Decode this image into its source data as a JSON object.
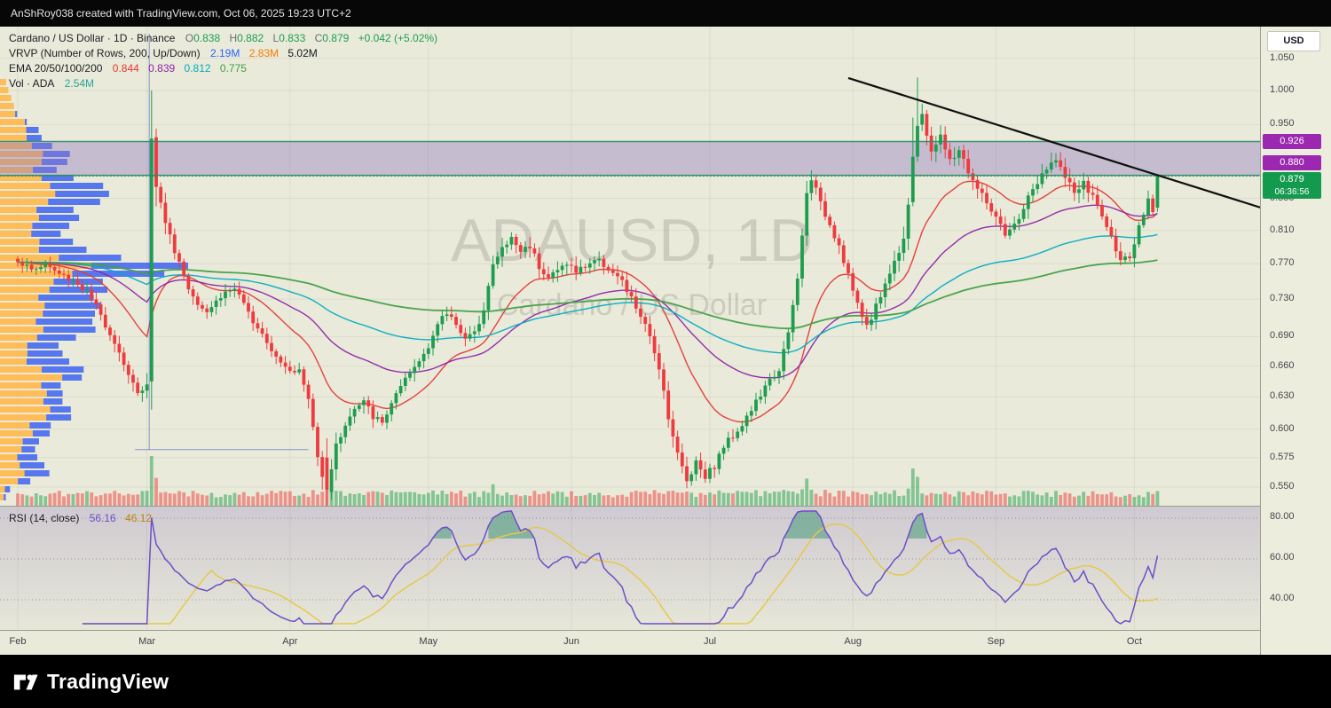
{
  "topbar": {
    "text": "AnShRoy038 created with TradingView.com, Oct 06, 2025 19:23 UTC+2"
  },
  "legend": {
    "symbol": {
      "title": "Cardano / US Dollar · 1D · Binance",
      "o_label": "O",
      "o": "0.838",
      "h_label": "H",
      "h": "0.882",
      "l_label": "L",
      "l": "0.833",
      "c_label": "C",
      "c": "0.879",
      "change": "+0.042 (+5.02%)"
    },
    "vrvp": {
      "title": "VRVP (Number of Rows, 200, Up/Down)",
      "up": "2.19M",
      "down": "2.83M",
      "total": "5.02M"
    },
    "ema": {
      "title": "EMA 20/50/100/200",
      "v1": "0.844",
      "v2": "0.839",
      "v3": "0.812",
      "v4": "0.775"
    },
    "vol": {
      "title": "Vol · ADA",
      "value": "2.54M"
    }
  },
  "rsi_legend": {
    "title": "RSI (14, close)",
    "value": "56.16",
    "ma": "46.12"
  },
  "watermark": {
    "line1": "ADAUSD, 1D",
    "line2": "Cardano / US Dollar"
  },
  "axis": {
    "currency": "USD",
    "price_ticks": [
      1.05,
      1.0,
      0.95,
      0.85,
      0.81,
      0.77,
      0.73,
      0.69,
      0.66,
      0.63,
      0.6,
      0.575,
      0.55
    ],
    "badges": [
      {
        "label": "0.926",
        "price": 0.926
      },
      {
        "label": "0.880",
        "price": 0.88
      }
    ],
    "last_price_badge": {
      "label": "0.879",
      "countdown": "06:36:56",
      "price": 0.879
    },
    "rsi_ticks": [
      {
        "v": 80,
        "label": "80.00"
      },
      {
        "v": 60,
        "label": "60.00"
      },
      {
        "v": 40,
        "label": "40.00"
      }
    ],
    "months": [
      "Feb",
      "Mar",
      "Apr",
      "May",
      "Jun",
      "Jul",
      "Aug",
      "Sep",
      "Oct"
    ]
  },
  "logo": {
    "text": "TradingView"
  },
  "colors": {
    "bg": "#e9ead9",
    "axis_bg": "#eceddc",
    "up": "#1f9d4f",
    "down": "#ef3a3e",
    "vrvp_up": "#ffb84d",
    "vrvp_down": "#4a6cf0",
    "ema": [
      "#e53935",
      "#8e24aa",
      "#00acc1",
      "#43a047"
    ],
    "band_fill": "rgba(146,120,196,0.40)",
    "band_edge": "#2e8b6a",
    "trendline": "#101010",
    "rsi": "#6b4fc8",
    "rsi_ma": "#e6c84d",
    "badge_purple": "#9c27b0",
    "badge_green": "#149a4e",
    "accent_blue": "#2962ff",
    "accent_orange": "#f57c00",
    "text_dark": "#131722",
    "teal": "#26a69a",
    "rsi_ma_legend": "#b8860b",
    "watermark": "rgba(60,60,60,0.17)",
    "grid": "rgba(0,0,0,0.055)"
  },
  "chart_data": {
    "type": "candlestick",
    "symbol": "ADAUSD",
    "name": "Cardano / US Dollar",
    "interval": "1D",
    "exchange": "Binance",
    "price_scale": "log",
    "y_range": [
      0.52,
      1.07
    ],
    "months": [
      "Feb",
      "Mar",
      "Apr",
      "May",
      "Jun",
      "Jul",
      "Aug",
      "Sep",
      "Oct"
    ],
    "month_days": [
      0,
      28,
      59,
      89,
      120,
      150,
      181,
      212,
      242
    ],
    "days_total": 248,
    "last_candle": {
      "o": 0.838,
      "h": 0.882,
      "l": 0.833,
      "c": 0.879
    },
    "change": {
      "abs": 0.042,
      "pct": 5.02
    },
    "ema_periods": [
      20,
      50,
      100,
      200
    ],
    "ema_values": [
      0.844,
      0.839,
      0.812,
      0.775
    ],
    "vrvp": {
      "rows": 200,
      "mode": "Up/Down",
      "up_vol": "2.19M",
      "down_vol": "2.83M",
      "total_vol": "5.02M"
    },
    "volume_display": "2.54M",
    "rsi": {
      "period": 14,
      "current": 56.16,
      "ma": 46.12,
      "levels": [
        40,
        60,
        80
      ]
    },
    "band": {
      "top": 0.926,
      "bottom": 0.88
    },
    "trendline": {
      "d1": 180,
      "p1": 1.019,
      "d2": 270,
      "p2": 0.837
    },
    "drawings": {
      "vline_day": 28.5,
      "vline_price_end": 0.582,
      "hline_price": 0.582,
      "h_from_day": 25.4,
      "h_to_day": 63
    },
    "close_anchors": [
      [
        0,
        0.775
      ],
      [
        3,
        0.762
      ],
      [
        6,
        0.77
      ],
      [
        9,
        0.758
      ],
      [
        12,
        0.752
      ],
      [
        15,
        0.738
      ],
      [
        18,
        0.712
      ],
      [
        21,
        0.685
      ],
      [
        24,
        0.652
      ],
      [
        26,
        0.632
      ],
      [
        28,
        0.645
      ],
      [
        29,
        0.93
      ],
      [
        30,
        0.868
      ],
      [
        31,
        0.842
      ],
      [
        33,
        0.802
      ],
      [
        35,
        0.772
      ],
      [
        37,
        0.742
      ],
      [
        39,
        0.728
      ],
      [
        41,
        0.718
      ],
      [
        43,
        0.728
      ],
      [
        45,
        0.738
      ],
      [
        47,
        0.742
      ],
      [
        49,
        0.722
      ],
      [
        51,
        0.708
      ],
      [
        53,
        0.695
      ],
      [
        55,
        0.678
      ],
      [
        57,
        0.665
      ],
      [
        59,
        0.658
      ],
      [
        61,
        0.655
      ],
      [
        63,
        0.628
      ],
      [
        65,
        0.575
      ],
      [
        67,
        0.548
      ],
      [
        69,
        0.585
      ],
      [
        71,
        0.605
      ],
      [
        73,
        0.618
      ],
      [
        75,
        0.625
      ],
      [
        77,
        0.612
      ],
      [
        79,
        0.605
      ],
      [
        81,
        0.625
      ],
      [
        83,
        0.638
      ],
      [
        85,
        0.652
      ],
      [
        87,
        0.665
      ],
      [
        89,
        0.682
      ],
      [
        91,
        0.702
      ],
      [
        93,
        0.715
      ],
      [
        95,
        0.705
      ],
      [
        97,
        0.688
      ],
      [
        99,
        0.692
      ],
      [
        101,
        0.722
      ],
      [
        103,
        0.768
      ],
      [
        105,
        0.788
      ],
      [
        107,
        0.8
      ],
      [
        109,
        0.785
      ],
      [
        111,
        0.792
      ],
      [
        113,
        0.768
      ],
      [
        115,
        0.755
      ],
      [
        117,
        0.762
      ],
      [
        119,
        0.772
      ],
      [
        121,
        0.76
      ],
      [
        123,
        0.768
      ],
      [
        125,
        0.775
      ],
      [
        127,
        0.77
      ],
      [
        129,
        0.76
      ],
      [
        131,
        0.748
      ],
      [
        133,
        0.73
      ],
      [
        135,
        0.712
      ],
      [
        137,
        0.688
      ],
      [
        139,
        0.66
      ],
      [
        141,
        0.612
      ],
      [
        143,
        0.578
      ],
      [
        145,
        0.555
      ],
      [
        147,
        0.572
      ],
      [
        149,
        0.56
      ],
      [
        151,
        0.568
      ],
      [
        153,
        0.585
      ],
      [
        155,
        0.595
      ],
      [
        157,
        0.605
      ],
      [
        159,
        0.618
      ],
      [
        161,
        0.632
      ],
      [
        163,
        0.645
      ],
      [
        165,
        0.658
      ],
      [
        167,
        0.692
      ],
      [
        169,
        0.752
      ],
      [
        171,
        0.855
      ],
      [
        172,
        0.878
      ],
      [
        174,
        0.842
      ],
      [
        176,
        0.818
      ],
      [
        178,
        0.792
      ],
      [
        180,
        0.758
      ],
      [
        182,
        0.722
      ],
      [
        184,
        0.702
      ],
      [
        186,
        0.722
      ],
      [
        188,
        0.748
      ],
      [
        190,
        0.772
      ],
      [
        192,
        0.802
      ],
      [
        193,
        0.845
      ],
      [
        194,
        0.905
      ],
      [
        195,
        0.948
      ],
      [
        196,
        0.96
      ],
      [
        197,
        0.935
      ],
      [
        198,
        0.915
      ],
      [
        200,
        0.932
      ],
      [
        202,
        0.898
      ],
      [
        204,
        0.915
      ],
      [
        206,
        0.885
      ],
      [
        208,
        0.862
      ],
      [
        210,
        0.845
      ],
      [
        212,
        0.824
      ],
      [
        214,
        0.802
      ],
      [
        216,
        0.815
      ],
      [
        218,
        0.838
      ],
      [
        220,
        0.862
      ],
      [
        222,
        0.878
      ],
      [
        224,
        0.895
      ],
      [
        225,
        0.905
      ],
      [
        227,
        0.875
      ],
      [
        229,
        0.858
      ],
      [
        231,
        0.868
      ],
      [
        233,
        0.852
      ],
      [
        235,
        0.828
      ],
      [
        237,
        0.8
      ],
      [
        239,
        0.778
      ],
      [
        241,
        0.772
      ],
      [
        242,
        0.792
      ],
      [
        243,
        0.812
      ],
      [
        244,
        0.83
      ],
      [
        245,
        0.845
      ],
      [
        246,
        0.836
      ],
      [
        247,
        0.879
      ]
    ],
    "wick_anchors": [
      [
        0,
        1.0
      ],
      [
        26,
        1.4
      ],
      [
        29,
        3.5
      ],
      [
        31,
        2.0
      ],
      [
        35,
        1.2
      ],
      [
        60,
        1.0
      ],
      [
        65,
        1.8
      ],
      [
        67,
        2.2
      ],
      [
        70,
        1.2
      ],
      [
        100,
        1.2
      ],
      [
        107,
        1.5
      ],
      [
        135,
        1.2
      ],
      [
        143,
        1.6
      ],
      [
        147,
        1.4
      ],
      [
        165,
        1.0
      ],
      [
        171,
        1.8
      ],
      [
        176,
        1.3
      ],
      [
        184,
        1.2
      ],
      [
        193,
        1.8
      ],
      [
        196,
        2.0
      ],
      [
        204,
        1.5
      ],
      [
        214,
        1.2
      ],
      [
        225,
        1.5
      ],
      [
        240,
        1.3
      ],
      [
        247,
        1.0
      ]
    ],
    "special_candles": {
      "29": [
        0.645,
        1.0,
        0.618,
        0.93
      ],
      "67": [
        0.575,
        0.592,
        0.513,
        0.548
      ],
      "194": [
        0.845,
        0.96,
        0.84,
        0.905
      ],
      "195": [
        0.905,
        1.02,
        0.898,
        0.948
      ],
      "247": [
        0.838,
        0.882,
        0.833,
        0.879
      ]
    },
    "volume_spikes": {
      "29": 4,
      "30": 3,
      "31": 2,
      "67": 3,
      "68": 1.8,
      "103": 1.8,
      "141": 1.6,
      "171": 2.2,
      "172": 1.8,
      "194": 5,
      "195": 3,
      "196": 1.8,
      "225": 1.5,
      "247": 1.4
    }
  }
}
